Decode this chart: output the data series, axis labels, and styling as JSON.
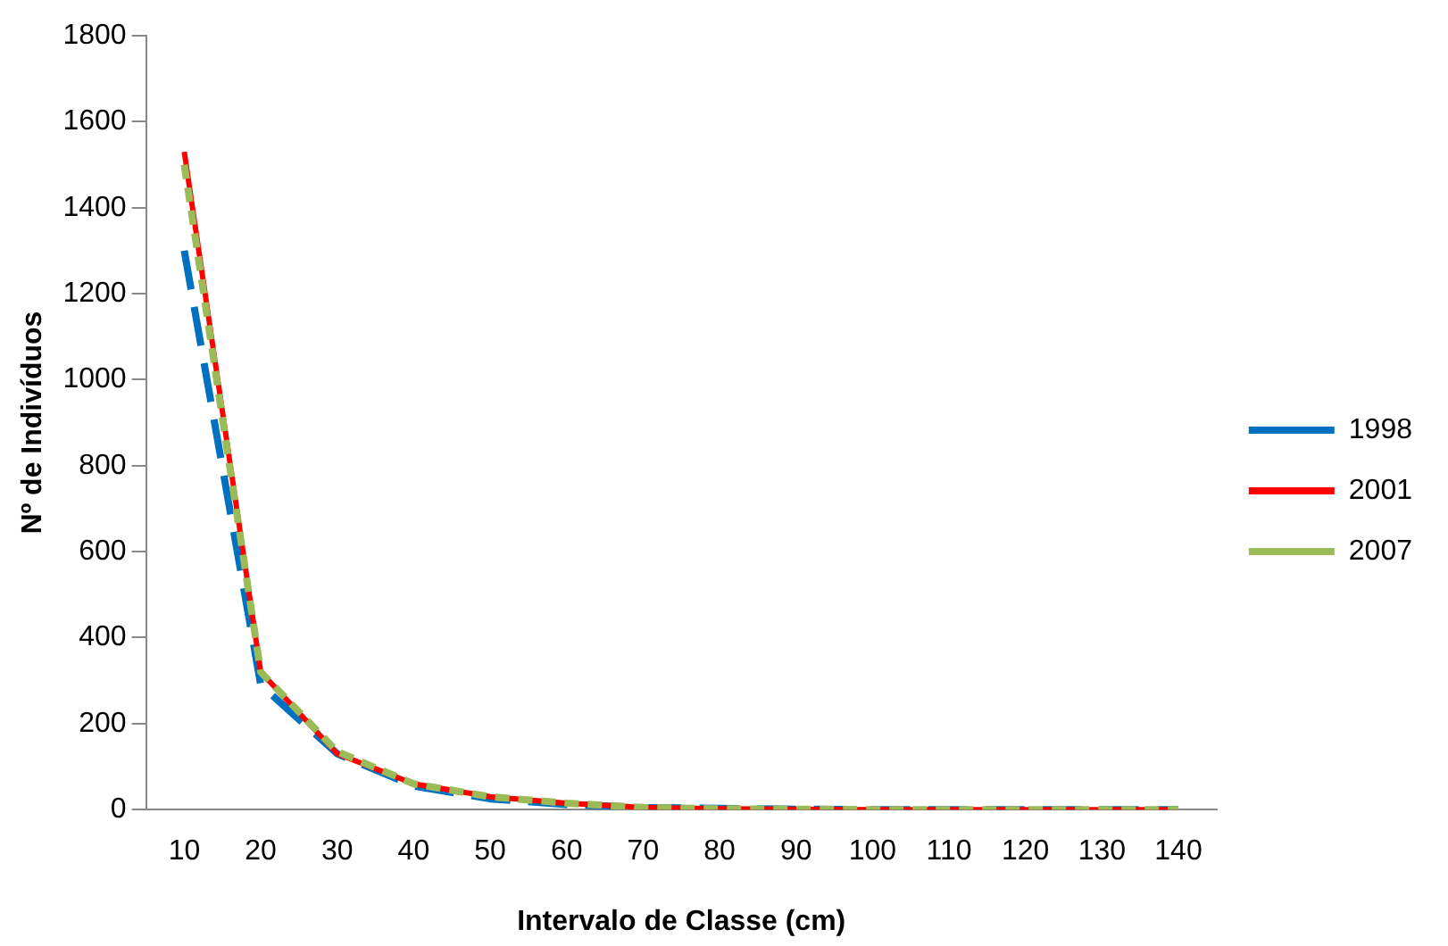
{
  "chart_data": {
    "type": "line",
    "xlabel": "Intervalo de Classe (cm)",
    "ylabel": "Nº de Indivíduos",
    "categories": [
      "10",
      "20",
      "30",
      "40",
      "50",
      "60",
      "70",
      "80",
      "90",
      "100",
      "110",
      "120",
      "130",
      "140"
    ],
    "series": [
      {
        "name": "1998",
        "color": "#0070c0",
        "line_style": "dashed",
        "values": [
          1300,
          290,
          130,
          55,
          25,
          12,
          5,
          3,
          1,
          0,
          0,
          0,
          0,
          0
        ]
      },
      {
        "name": "2001",
        "color": "#ff0000",
        "line_style": "solid",
        "values": [
          1530,
          320,
          130,
          60,
          30,
          15,
          5,
          2,
          1,
          0,
          0,
          0,
          0,
          0
        ]
      },
      {
        "name": "2007",
        "color": "#9bbb59",
        "line_style": "dotted",
        "values": [
          1500,
          320,
          135,
          60,
          30,
          15,
          5,
          2,
          1,
          0,
          0,
          0,
          0,
          0
        ]
      }
    ],
    "ylim": [
      0,
      1800
    ],
    "yticks": [
      0,
      200,
      400,
      600,
      800,
      1000,
      1200,
      1400,
      1600,
      1800
    ],
    "grid": false,
    "legend": "right",
    "marker": "none"
  }
}
